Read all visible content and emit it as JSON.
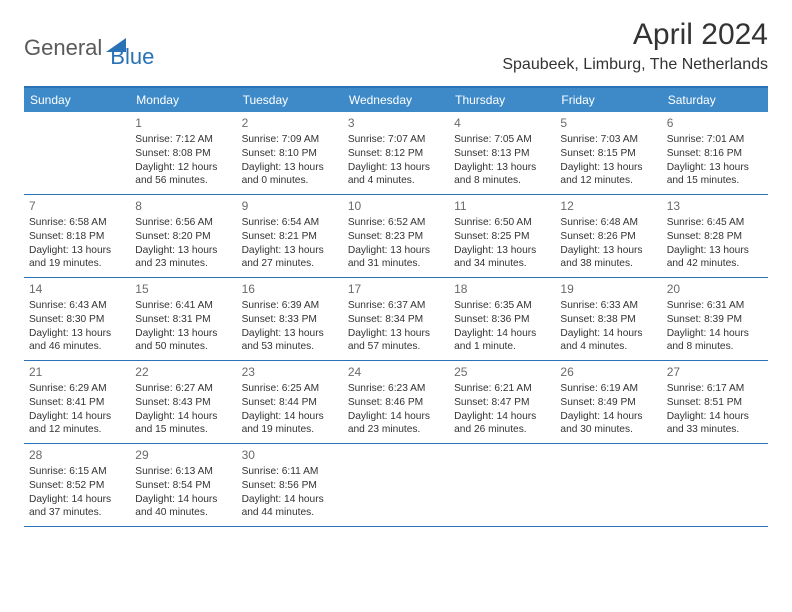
{
  "brand": {
    "part1": "General",
    "part2": "Blue"
  },
  "title": "April 2024",
  "location": "Spaubeek, Limburg, The Netherlands",
  "colors": {
    "header_bg": "#3e8ac9",
    "border": "#2a72b5",
    "text": "#333333",
    "daynum": "#6a6a6a",
    "brand_gray": "#5a5a5a",
    "brand_blue": "#2a72b5",
    "page_bg": "#ffffff"
  },
  "day_headers": [
    "Sunday",
    "Monday",
    "Tuesday",
    "Wednesday",
    "Thursday",
    "Friday",
    "Saturday"
  ],
  "weeks": [
    [
      {
        "num": "",
        "sunrise": "",
        "sunset": "",
        "daylight": ""
      },
      {
        "num": "1",
        "sunrise": "Sunrise: 7:12 AM",
        "sunset": "Sunset: 8:08 PM",
        "daylight": "Daylight: 12 hours and 56 minutes."
      },
      {
        "num": "2",
        "sunrise": "Sunrise: 7:09 AM",
        "sunset": "Sunset: 8:10 PM",
        "daylight": "Daylight: 13 hours and 0 minutes."
      },
      {
        "num": "3",
        "sunrise": "Sunrise: 7:07 AM",
        "sunset": "Sunset: 8:12 PM",
        "daylight": "Daylight: 13 hours and 4 minutes."
      },
      {
        "num": "4",
        "sunrise": "Sunrise: 7:05 AM",
        "sunset": "Sunset: 8:13 PM",
        "daylight": "Daylight: 13 hours and 8 minutes."
      },
      {
        "num": "5",
        "sunrise": "Sunrise: 7:03 AM",
        "sunset": "Sunset: 8:15 PM",
        "daylight": "Daylight: 13 hours and 12 minutes."
      },
      {
        "num": "6",
        "sunrise": "Sunrise: 7:01 AM",
        "sunset": "Sunset: 8:16 PM",
        "daylight": "Daylight: 13 hours and 15 minutes."
      }
    ],
    [
      {
        "num": "7",
        "sunrise": "Sunrise: 6:58 AM",
        "sunset": "Sunset: 8:18 PM",
        "daylight": "Daylight: 13 hours and 19 minutes."
      },
      {
        "num": "8",
        "sunrise": "Sunrise: 6:56 AM",
        "sunset": "Sunset: 8:20 PM",
        "daylight": "Daylight: 13 hours and 23 minutes."
      },
      {
        "num": "9",
        "sunrise": "Sunrise: 6:54 AM",
        "sunset": "Sunset: 8:21 PM",
        "daylight": "Daylight: 13 hours and 27 minutes."
      },
      {
        "num": "10",
        "sunrise": "Sunrise: 6:52 AM",
        "sunset": "Sunset: 8:23 PM",
        "daylight": "Daylight: 13 hours and 31 minutes."
      },
      {
        "num": "11",
        "sunrise": "Sunrise: 6:50 AM",
        "sunset": "Sunset: 8:25 PM",
        "daylight": "Daylight: 13 hours and 34 minutes."
      },
      {
        "num": "12",
        "sunrise": "Sunrise: 6:48 AM",
        "sunset": "Sunset: 8:26 PM",
        "daylight": "Daylight: 13 hours and 38 minutes."
      },
      {
        "num": "13",
        "sunrise": "Sunrise: 6:45 AM",
        "sunset": "Sunset: 8:28 PM",
        "daylight": "Daylight: 13 hours and 42 minutes."
      }
    ],
    [
      {
        "num": "14",
        "sunrise": "Sunrise: 6:43 AM",
        "sunset": "Sunset: 8:30 PM",
        "daylight": "Daylight: 13 hours and 46 minutes."
      },
      {
        "num": "15",
        "sunrise": "Sunrise: 6:41 AM",
        "sunset": "Sunset: 8:31 PM",
        "daylight": "Daylight: 13 hours and 50 minutes."
      },
      {
        "num": "16",
        "sunrise": "Sunrise: 6:39 AM",
        "sunset": "Sunset: 8:33 PM",
        "daylight": "Daylight: 13 hours and 53 minutes."
      },
      {
        "num": "17",
        "sunrise": "Sunrise: 6:37 AM",
        "sunset": "Sunset: 8:34 PM",
        "daylight": "Daylight: 13 hours and 57 minutes."
      },
      {
        "num": "18",
        "sunrise": "Sunrise: 6:35 AM",
        "sunset": "Sunset: 8:36 PM",
        "daylight": "Daylight: 14 hours and 1 minute."
      },
      {
        "num": "19",
        "sunrise": "Sunrise: 6:33 AM",
        "sunset": "Sunset: 8:38 PM",
        "daylight": "Daylight: 14 hours and 4 minutes."
      },
      {
        "num": "20",
        "sunrise": "Sunrise: 6:31 AM",
        "sunset": "Sunset: 8:39 PM",
        "daylight": "Daylight: 14 hours and 8 minutes."
      }
    ],
    [
      {
        "num": "21",
        "sunrise": "Sunrise: 6:29 AM",
        "sunset": "Sunset: 8:41 PM",
        "daylight": "Daylight: 14 hours and 12 minutes."
      },
      {
        "num": "22",
        "sunrise": "Sunrise: 6:27 AM",
        "sunset": "Sunset: 8:43 PM",
        "daylight": "Daylight: 14 hours and 15 minutes."
      },
      {
        "num": "23",
        "sunrise": "Sunrise: 6:25 AM",
        "sunset": "Sunset: 8:44 PM",
        "daylight": "Daylight: 14 hours and 19 minutes."
      },
      {
        "num": "24",
        "sunrise": "Sunrise: 6:23 AM",
        "sunset": "Sunset: 8:46 PM",
        "daylight": "Daylight: 14 hours and 23 minutes."
      },
      {
        "num": "25",
        "sunrise": "Sunrise: 6:21 AM",
        "sunset": "Sunset: 8:47 PM",
        "daylight": "Daylight: 14 hours and 26 minutes."
      },
      {
        "num": "26",
        "sunrise": "Sunrise: 6:19 AM",
        "sunset": "Sunset: 8:49 PM",
        "daylight": "Daylight: 14 hours and 30 minutes."
      },
      {
        "num": "27",
        "sunrise": "Sunrise: 6:17 AM",
        "sunset": "Sunset: 8:51 PM",
        "daylight": "Daylight: 14 hours and 33 minutes."
      }
    ],
    [
      {
        "num": "28",
        "sunrise": "Sunrise: 6:15 AM",
        "sunset": "Sunset: 8:52 PM",
        "daylight": "Daylight: 14 hours and 37 minutes."
      },
      {
        "num": "29",
        "sunrise": "Sunrise: 6:13 AM",
        "sunset": "Sunset: 8:54 PM",
        "daylight": "Daylight: 14 hours and 40 minutes."
      },
      {
        "num": "30",
        "sunrise": "Sunrise: 6:11 AM",
        "sunset": "Sunset: 8:56 PM",
        "daylight": "Daylight: 14 hours and 44 minutes."
      },
      {
        "num": "",
        "sunrise": "",
        "sunset": "",
        "daylight": ""
      },
      {
        "num": "",
        "sunrise": "",
        "sunset": "",
        "daylight": ""
      },
      {
        "num": "",
        "sunrise": "",
        "sunset": "",
        "daylight": ""
      },
      {
        "num": "",
        "sunrise": "",
        "sunset": "",
        "daylight": ""
      }
    ]
  ]
}
